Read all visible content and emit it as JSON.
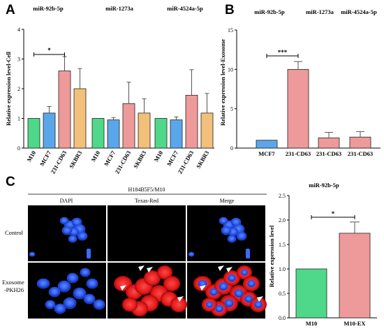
{
  "panels": [
    "A",
    "B",
    "C"
  ],
  "chart_data": [
    {
      "panel": "A",
      "type": "bar",
      "ylabel": "Relative expression level-Cell",
      "ylim": [
        0,
        4
      ],
      "yticks": [
        0,
        1,
        2,
        3,
        4
      ],
      "grid": false,
      "groups": [
        "miR-92b-5p",
        "miR-1273a",
        "miR-4524a-5p"
      ],
      "categories": [
        "M10",
        "MCF7",
        "231-CD63",
        "SKBR3"
      ],
      "colors": [
        "#4fd88a",
        "#5aa6ea",
        "#ef9a9a",
        "#f2c07a"
      ],
      "series": [
        {
          "group": "miR-92b-5p",
          "values": [
            1.0,
            1.18,
            2.6,
            2.0
          ],
          "errors": [
            0,
            0.22,
            0.48,
            0.68
          ]
        },
        {
          "group": "miR-1273a",
          "values": [
            1.0,
            0.95,
            1.5,
            1.18
          ],
          "errors": [
            0,
            0.08,
            0.72,
            0.48
          ]
        },
        {
          "group": "miR-4524a-5p",
          "values": [
            1.0,
            0.95,
            1.78,
            1.18
          ],
          "errors": [
            0,
            0.1,
            0.86,
            0.66
          ]
        }
      ],
      "annotations": [
        {
          "text": "*",
          "from": "M10",
          "to": "231-CD63",
          "group": "miR-92b-5p"
        }
      ]
    },
    {
      "panel": "B",
      "type": "bar",
      "ylabel": "Relative expression level-Exosome",
      "ylim": [
        0,
        15
      ],
      "yticks": [
        0,
        5,
        10,
        15
      ],
      "grid": false,
      "groups": [
        "miR-92b-5p",
        "miR-1273a",
        "miR-4524a-5p"
      ],
      "categories": [
        "MCF7",
        "231-CD63",
        "231-CD63",
        "231-CD63"
      ],
      "colors": [
        "#5aa6ea",
        "#ef9a9a",
        "#ef9a9a",
        "#ef9a9a"
      ],
      "values": [
        1.0,
        10.0,
        1.3,
        1.4
      ],
      "errors": [
        0,
        1.0,
        0.7,
        0.7
      ],
      "annotations": [
        {
          "text": "***",
          "from": 0,
          "to": 1
        }
      ]
    },
    {
      "panel": "C-right",
      "type": "bar",
      "title": "miR-92b-5p",
      "ylabel": "Relative expression level",
      "ylim": [
        0,
        2.5
      ],
      "yticks": [
        "0.0",
        "0.5",
        "1.0",
        "1.5",
        "2.0",
        "2.5"
      ],
      "grid": false,
      "categories": [
        "M10",
        "M10-EX"
      ],
      "colors": [
        "#4fd88a",
        "#ef9a9a"
      ],
      "values": [
        1.0,
        1.73
      ],
      "errors": [
        0,
        0.23
      ],
      "annotations": [
        {
          "text": "*",
          "from": 0,
          "to": 1
        }
      ]
    }
  ],
  "micrograph": {
    "title": "H184B5F5/M10",
    "columns": [
      "DAPI",
      "Texas-Red",
      "Merge"
    ],
    "rows": [
      "Control",
      "Exosome\n-PKH26"
    ]
  }
}
